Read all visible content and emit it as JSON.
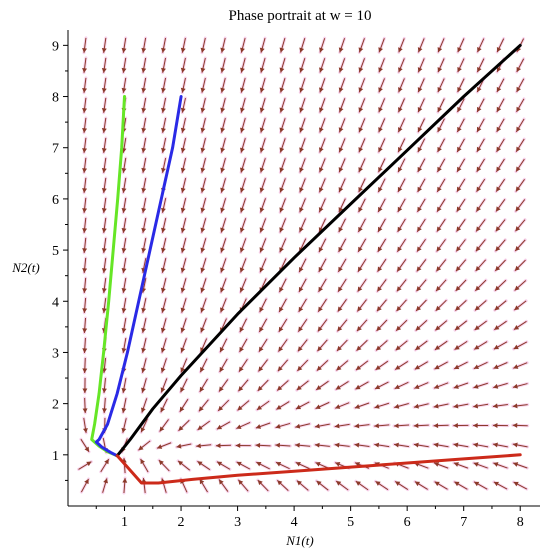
{
  "chart_data": {
    "type": "line",
    "title": "Phase portrait at w = 10",
    "xlabel": "N1(t)",
    "ylabel": "N2(t)",
    "xlim": [
      0,
      8.35
    ],
    "ylim": [
      0,
      9.3
    ],
    "x_ticks": [
      "1",
      "2",
      "3",
      "4",
      "5",
      "6",
      "7",
      "8"
    ],
    "y_ticks": [
      "1",
      "2",
      "3",
      "4",
      "5",
      "6",
      "7",
      "8",
      "9"
    ],
    "grid": false,
    "legend": "none",
    "direction_field": {
      "x_range": [
        0.3,
        8
      ],
      "y_range": [
        0.4,
        9
      ],
      "columns": 23,
      "rows": 23,
      "arrow_color": "#8b3a2a",
      "glow_color": "#f3b6e0"
    },
    "equilibrium": {
      "x": 0.87,
      "y": 0.98
    },
    "series": [
      {
        "color": "#66e626",
        "x": [
          1.0,
          0.95,
          0.88,
          0.8,
          0.72,
          0.63,
          0.55,
          0.47,
          0.42,
          0.55,
          0.7,
          0.87
        ],
        "y": [
          8.0,
          7.0,
          6.0,
          5.0,
          4.0,
          3.0,
          2.2,
          1.6,
          1.3,
          1.17,
          1.06,
          0.98
        ]
      },
      {
        "color": "#2a2ae6",
        "x": [
          2.0,
          1.85,
          1.65,
          1.45,
          1.25,
          1.05,
          0.87,
          0.7,
          0.55,
          0.5,
          0.6,
          0.75,
          0.87
        ],
        "y": [
          8.0,
          7.0,
          6.0,
          5.0,
          4.0,
          3.0,
          2.2,
          1.6,
          1.3,
          1.25,
          1.15,
          1.05,
          0.98
        ]
      },
      {
        "color": "#000000",
        "x": [
          8.0,
          7.0,
          6.0,
          5.0,
          4.0,
          3.0,
          2.0,
          1.5,
          1.1,
          0.87
        ],
        "y": [
          9.0,
          8.0,
          6.95,
          5.9,
          4.85,
          3.75,
          2.55,
          1.9,
          1.3,
          0.98
        ]
      },
      {
        "color": "#cc2a1a",
        "x": [
          8.0,
          7.0,
          6.0,
          5.0,
          4.0,
          3.0,
          2.2,
          1.6,
          1.3,
          1.1,
          0.87
        ],
        "y": [
          1.0,
          0.92,
          0.84,
          0.76,
          0.68,
          0.6,
          0.52,
          0.45,
          0.45,
          0.7,
          0.98
        ]
      }
    ]
  }
}
